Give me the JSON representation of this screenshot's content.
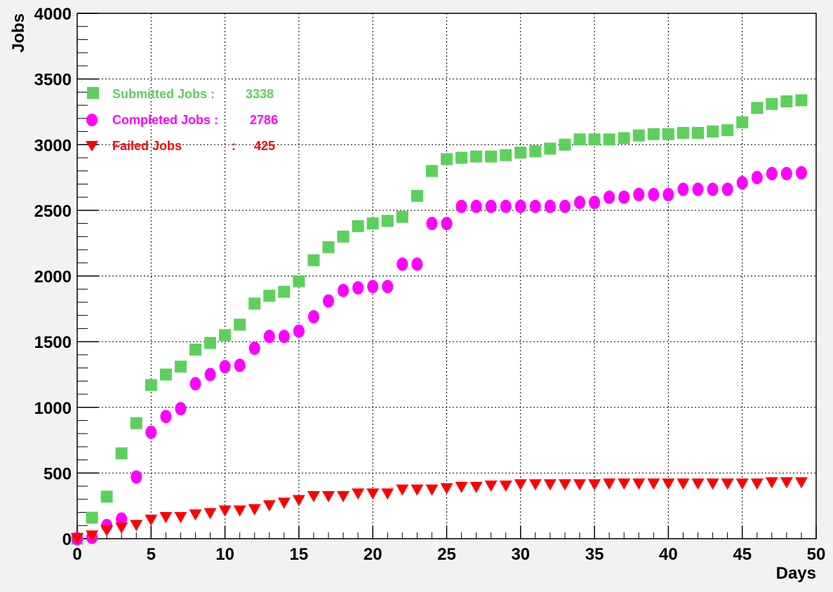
{
  "chart_data": {
    "type": "scatter",
    "title": "",
    "xlabel": "Days",
    "ylabel": "Jobs",
    "xlim": [
      0,
      50
    ],
    "ylim": [
      0,
      4000
    ],
    "xticks": [
      "0",
      "5",
      "10",
      "15",
      "20",
      "25",
      "30",
      "35",
      "40",
      "45",
      "50"
    ],
    "yticks": [
      "0",
      "500",
      "1000",
      "1500",
      "2000",
      "2500",
      "3000",
      "3500",
      "4000"
    ],
    "grid": true,
    "legend_position": "top-left",
    "series": [
      {
        "name": "Submitted Jobs :",
        "legend_value": "3338",
        "color": "#5bd15b",
        "marker": "square",
        "x": [
          0,
          1,
          2,
          3,
          4,
          5,
          6,
          7,
          8,
          9,
          10,
          11,
          12,
          13,
          14,
          15,
          16,
          17,
          18,
          19,
          20,
          21,
          22,
          23,
          24,
          25,
          26,
          27,
          28,
          29,
          30,
          31,
          32,
          33,
          34,
          35,
          36,
          37,
          38,
          39,
          40,
          41,
          42,
          43,
          44,
          45,
          46,
          47,
          48,
          49
        ],
        "y": [
          0,
          160,
          320,
          650,
          880,
          1170,
          1250,
          1310,
          1440,
          1490,
          1550,
          1630,
          1790,
          1850,
          1880,
          1960,
          2120,
          2220,
          2300,
          2380,
          2400,
          2420,
          2450,
          2610,
          2800,
          2890,
          2900,
          2910,
          2910,
          2920,
          2940,
          2950,
          2970,
          3000,
          3040,
          3040,
          3040,
          3050,
          3070,
          3080,
          3080,
          3090,
          3090,
          3100,
          3110,
          3170,
          3280,
          3310,
          3330,
          3338
        ]
      },
      {
        "name": "Completed Jobs :",
        "legend_value": "2786",
        "color": "#ff00ff",
        "marker": "circle",
        "x": [
          0,
          1,
          2,
          3,
          4,
          5,
          6,
          7,
          8,
          9,
          10,
          11,
          12,
          13,
          14,
          15,
          16,
          17,
          18,
          19,
          20,
          21,
          22,
          23,
          24,
          25,
          26,
          27,
          28,
          29,
          30,
          31,
          32,
          33,
          34,
          35,
          36,
          37,
          38,
          39,
          40,
          41,
          42,
          43,
          44,
          45,
          46,
          47,
          48,
          49
        ],
        "y": [
          0,
          10,
          100,
          150,
          470,
          810,
          930,
          990,
          1180,
          1250,
          1310,
          1320,
          1450,
          1540,
          1540,
          1580,
          1690,
          1810,
          1890,
          1910,
          1920,
          1920,
          2090,
          2090,
          2400,
          2400,
          2530,
          2530,
          2530,
          2530,
          2530,
          2530,
          2530,
          2530,
          2560,
          2560,
          2600,
          2600,
          2620,
          2620,
          2620,
          2660,
          2660,
          2660,
          2660,
          2710,
          2750,
          2780,
          2780,
          2786
        ]
      },
      {
        "name": "Failed Jobs",
        "name_separator": ":",
        "legend_value": "425",
        "color": "#ff0000",
        "marker": "triangle-down",
        "x": [
          0,
          1,
          2,
          3,
          4,
          5,
          6,
          7,
          8,
          9,
          10,
          11,
          12,
          13,
          14,
          15,
          16,
          17,
          18,
          19,
          20,
          21,
          22,
          23,
          24,
          25,
          26,
          27,
          28,
          29,
          30,
          31,
          32,
          33,
          34,
          35,
          36,
          37,
          38,
          39,
          40,
          41,
          42,
          43,
          44,
          45,
          46,
          47,
          48,
          49
        ],
        "y": [
          0,
          20,
          60,
          80,
          100,
          140,
          160,
          160,
          180,
          190,
          210,
          210,
          220,
          250,
          270,
          290,
          320,
          320,
          320,
          340,
          340,
          340,
          370,
          370,
          370,
          380,
          390,
          390,
          400,
          400,
          410,
          410,
          410,
          410,
          410,
          410,
          415,
          415,
          415,
          415,
          415,
          415,
          415,
          415,
          415,
          415,
          415,
          425,
          425,
          425
        ]
      }
    ]
  }
}
